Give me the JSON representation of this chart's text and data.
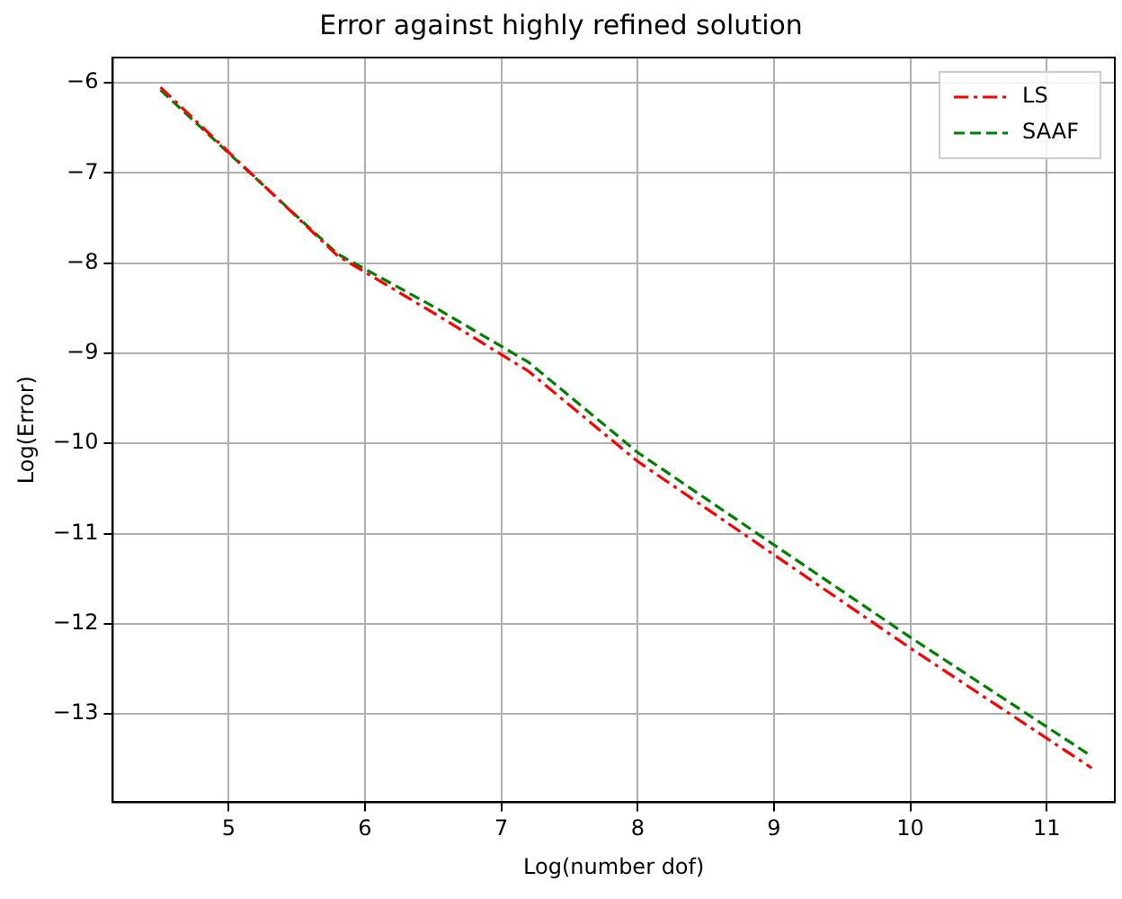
{
  "chart_data": {
    "type": "line",
    "title": "Error against highly refined solution",
    "xlabel": "Log(number dof)",
    "ylabel": "Log(Error)",
    "xlim": [
      4.15,
      11.5
    ],
    "xticks": [
      5,
      6,
      7,
      8,
      9,
      10,
      11
    ],
    "ylim": [
      -13.98,
      -5.72
    ],
    "yticks": [
      -13,
      -12,
      -11,
      -10,
      -9,
      -8,
      -7,
      -6
    ],
    "grid": true,
    "legend": "top right",
    "marker": "none",
    "series": [
      {
        "name": "LS",
        "color": "#ff0000",
        "line_style": "dashdot",
        "x": [
          4.5,
          5.8,
          6.5,
          7.2,
          8,
          10,
          11.33
        ],
        "values": [
          -6.05,
          -7.92,
          -8.55,
          -9.2,
          -10.2,
          -12.27,
          -13.6
        ]
      },
      {
        "name": "SAAF",
        "color": "#008000",
        "line_style": "dashed",
        "x": [
          4.5,
          5.8,
          6.5,
          7.2,
          8,
          10,
          11.33
        ],
        "values": [
          -6.08,
          -7.9,
          -8.48,
          -9.1,
          -10.1,
          -12.15,
          -13.47
        ]
      }
    ]
  }
}
